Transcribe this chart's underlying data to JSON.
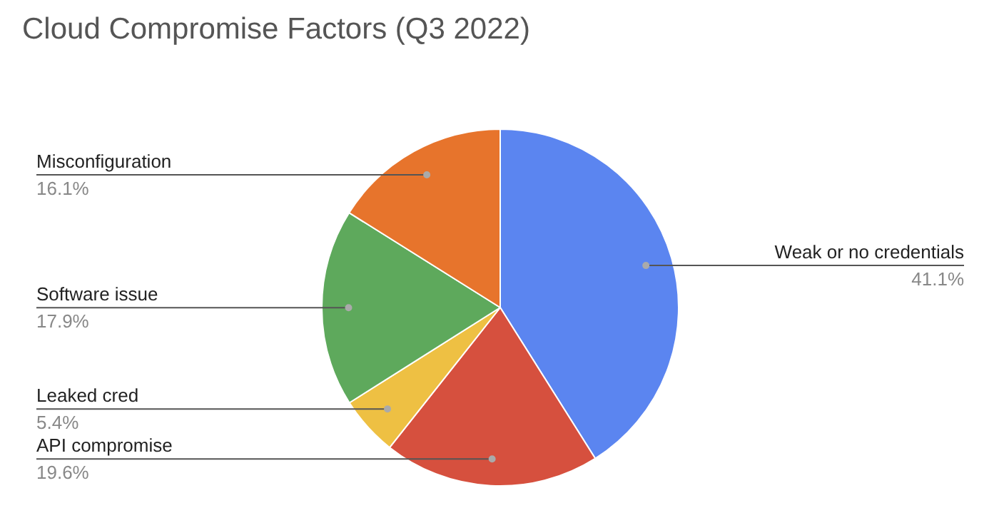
{
  "chart_data": {
    "type": "pie",
    "title": "Cloud Compromise Factors (Q3 2022)",
    "categories": [
      "Weak or no credentials",
      "API compromise",
      "Leaked cred",
      "Software issue",
      "Misconfiguration"
    ],
    "values": [
      41.1,
      19.6,
      5.4,
      17.9,
      16.1
    ],
    "colors": [
      "#5b85f0",
      "#d6503e",
      "#eec043",
      "#5ea95c",
      "#e7742c"
    ],
    "value_labels": [
      "41.1%",
      "19.6%",
      "5.4%",
      "17.9%",
      "16.1%"
    ]
  }
}
